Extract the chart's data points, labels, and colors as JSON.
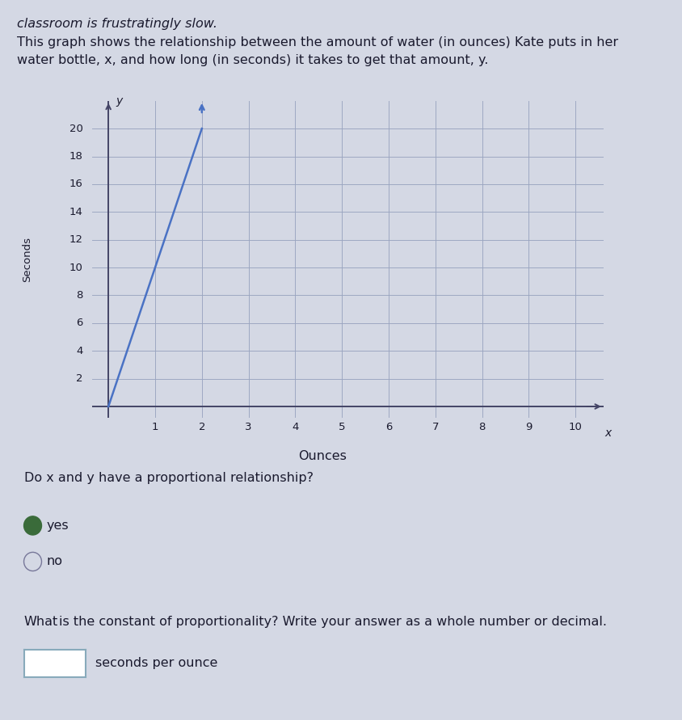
{
  "header_text": "classroom is frustratingly slow.",
  "description_line1": "This graph shows the relationship between the amount of water (in ounces) Kate puts in her",
  "description_line2": "water bottle, x, and how long (in seconds) it takes to get that amount, y.",
  "xlabel": "Ounces",
  "ylabel": "Seconds",
  "x_label_axis": "x",
  "y_label_axis": "y",
  "xlim": [
    0,
    10
  ],
  "ylim": [
    0,
    20
  ],
  "xticks": [
    1,
    2,
    3,
    4,
    5,
    6,
    7,
    8,
    9,
    10
  ],
  "yticks": [
    2,
    4,
    6,
    8,
    10,
    12,
    14,
    16,
    18,
    20
  ],
  "line_x": [
    0,
    2
  ],
  "line_y": [
    0,
    20
  ],
  "line_color": "#4a72c4",
  "line_width": 1.8,
  "bg_color": "#cdd3e0",
  "fig_bg_color": "#d4d8e4",
  "grid_color": "#9aa5c0",
  "axis_color": "#444466",
  "text_color": "#1a1a2e",
  "question_text": "Do x and y have a proportional relationship?",
  "option_yes": "yes",
  "option_no": "no",
  "constant_label": "What",
  "constant_label2": "is the constant of proportionality? Write your answer as a whole number or decimal.",
  "constant_suffix": "seconds per ounce",
  "radio_fill_selected": "#3a6b3a",
  "radio_stroke": "#777799",
  "input_box_stroke": "#88aabb",
  "font_size_text": 11.5,
  "font_size_tick": 9.5
}
